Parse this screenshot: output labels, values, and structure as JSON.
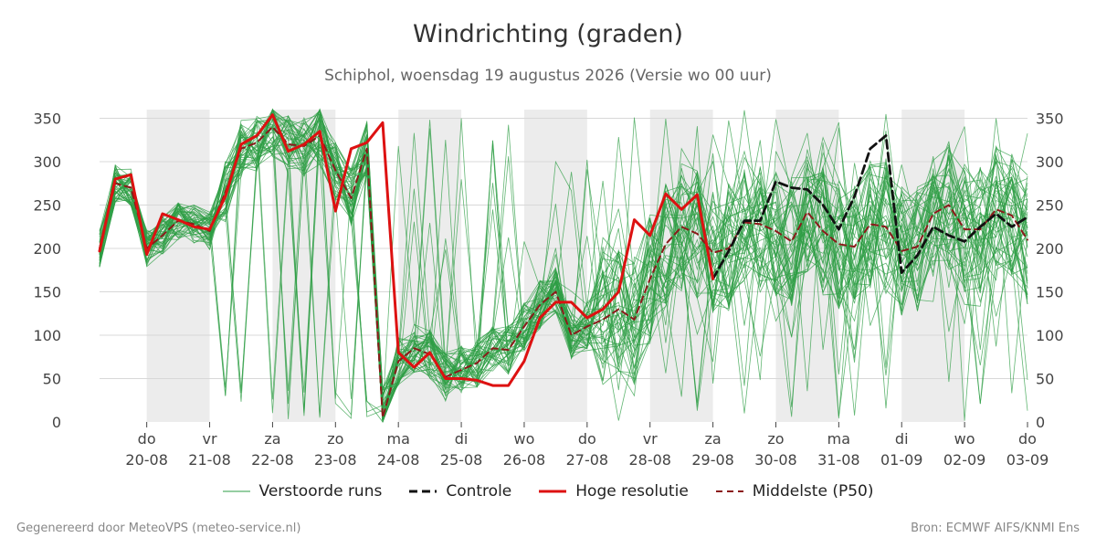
{
  "header": {
    "title": "Windrichting (graden)",
    "subtitle": "Schiphol, woensdag 19 augustus 2026 (Versie wo 00 uur)"
  },
  "footer": {
    "left": "Gegenereerd door MeteoVPS (meteo-service.nl)",
    "right": "Bron: ECMWF AIFS/KNMI Ens"
  },
  "legend": [
    {
      "label": "Verstoorde runs",
      "color": "#2e9e44",
      "style": "thin-solid"
    },
    {
      "label": "Controle",
      "color": "#111111",
      "style": "dashed"
    },
    {
      "label": "Hoge resolutie",
      "color": "#dd1111",
      "style": "thick-solid"
    },
    {
      "label": "Middelste (P50)",
      "color": "#8b1a1a",
      "style": "dashed"
    }
  ],
  "chart_data": {
    "type": "line",
    "ylim": [
      0,
      360
    ],
    "yticks": [
      0,
      50,
      100,
      150,
      200,
      250,
      300,
      350
    ],
    "xlim": [
      -0.75,
      14
    ],
    "xticks": [
      {
        "x": 0,
        "day": "do",
        "date": "20-08"
      },
      {
        "x": 1,
        "day": "vr",
        "date": "21-08"
      },
      {
        "x": 2,
        "day": "za",
        "date": "22-08"
      },
      {
        "x": 3,
        "day": "zo",
        "date": "23-08"
      },
      {
        "x": 4,
        "day": "ma",
        "date": "24-08"
      },
      {
        "x": 5,
        "day": "di",
        "date": "25-08"
      },
      {
        "x": 6,
        "day": "wo",
        "date": "26-08"
      },
      {
        "x": 7,
        "day": "do",
        "date": "27-08"
      },
      {
        "x": 8,
        "day": "vr",
        "date": "28-08"
      },
      {
        "x": 9,
        "day": "za",
        "date": "29-08"
      },
      {
        "x": 10,
        "day": "zo",
        "date": "30-08"
      },
      {
        "x": 11,
        "day": "ma",
        "date": "31-08"
      },
      {
        "x": 12,
        "day": "di",
        "date": "01-09"
      },
      {
        "x": 13,
        "day": "wo",
        "date": "02-09"
      },
      {
        "x": 14,
        "day": "do",
        "date": "03-09"
      }
    ],
    "shaded_days": [
      [
        0,
        1
      ],
      [
        2,
        3
      ],
      [
        4,
        5
      ],
      [
        6,
        7
      ],
      [
        8,
        9
      ],
      [
        10,
        11
      ],
      [
        12,
        13
      ]
    ],
    "grid": true,
    "ensemble_members": 50,
    "series": [
      {
        "name": "Hoge resolutie",
        "color": "#dd1111",
        "x": [
          -0.75,
          -0.5,
          -0.25,
          0,
          0.25,
          0.5,
          0.75,
          1,
          1.25,
          1.5,
          1.75,
          2,
          2.25,
          2.5,
          2.75,
          3,
          3.25,
          3.5,
          3.75,
          4,
          4.25,
          4.5,
          4.75,
          5,
          5.25,
          5.5,
          5.75,
          6,
          6.25,
          6.5,
          6.75,
          7,
          7.25,
          7.5,
          7.75,
          8,
          8.25,
          8.5,
          8.75,
          9
        ],
        "values": [
          197,
          280,
          285,
          193,
          240,
          233,
          225,
          222,
          260,
          320,
          330,
          354,
          312,
          320,
          335,
          243,
          315,
          322,
          345,
          80,
          63,
          80,
          50,
          50,
          48,
          42,
          42,
          70,
          120,
          138,
          138,
          120,
          130,
          150,
          233,
          215,
          263,
          245,
          262,
          165
        ]
      },
      {
        "name": "Controle",
        "color": "#111111",
        "x": [
          9,
          9.25,
          9.5,
          9.75,
          10,
          10.25,
          10.5,
          10.75,
          11,
          11.25,
          11.5,
          11.75,
          12,
          12.25,
          12.5,
          12.75,
          13,
          13.25,
          13.5,
          13.75,
          14
        ],
        "values": [
          165,
          197,
          232,
          232,
          277,
          270,
          268,
          250,
          222,
          260,
          315,
          330,
          172,
          192,
          225,
          215,
          208,
          225,
          240,
          225,
          236
        ]
      },
      {
        "name": "Middelste (P50)",
        "color": "#8b1a1a",
        "x": [
          -0.75,
          -0.5,
          -0.25,
          0,
          0.25,
          0.5,
          0.75,
          1,
          1.25,
          1.5,
          1.75,
          2,
          2.25,
          2.5,
          2.75,
          3,
          3.25,
          3.5,
          3.75,
          4,
          4.25,
          4.5,
          4.75,
          5,
          5.25,
          5.5,
          5.75,
          6,
          6.25,
          6.5,
          6.75,
          7,
          7.25,
          7.5,
          7.75,
          8,
          8.25,
          8.5,
          8.75,
          9,
          9.25,
          9.5,
          9.75,
          10,
          10.25,
          10.5,
          10.75,
          11,
          11.25,
          11.5,
          11.75,
          12,
          12.25,
          12.5,
          12.75,
          13,
          13.25,
          13.5,
          13.75,
          14
        ],
        "values": [
          200,
          275,
          270,
          200,
          215,
          232,
          228,
          220,
          265,
          315,
          322,
          340,
          320,
          318,
          330,
          290,
          258,
          315,
          5,
          70,
          85,
          78,
          52,
          60,
          68,
          85,
          83,
          110,
          135,
          150,
          100,
          110,
          118,
          130,
          118,
          165,
          205,
          225,
          217,
          195,
          200,
          230,
          228,
          220,
          208,
          242,
          220,
          205,
          202,
          228,
          225,
          197,
          202,
          240,
          250,
          222,
          222,
          245,
          238,
          210
        ]
      }
    ]
  }
}
